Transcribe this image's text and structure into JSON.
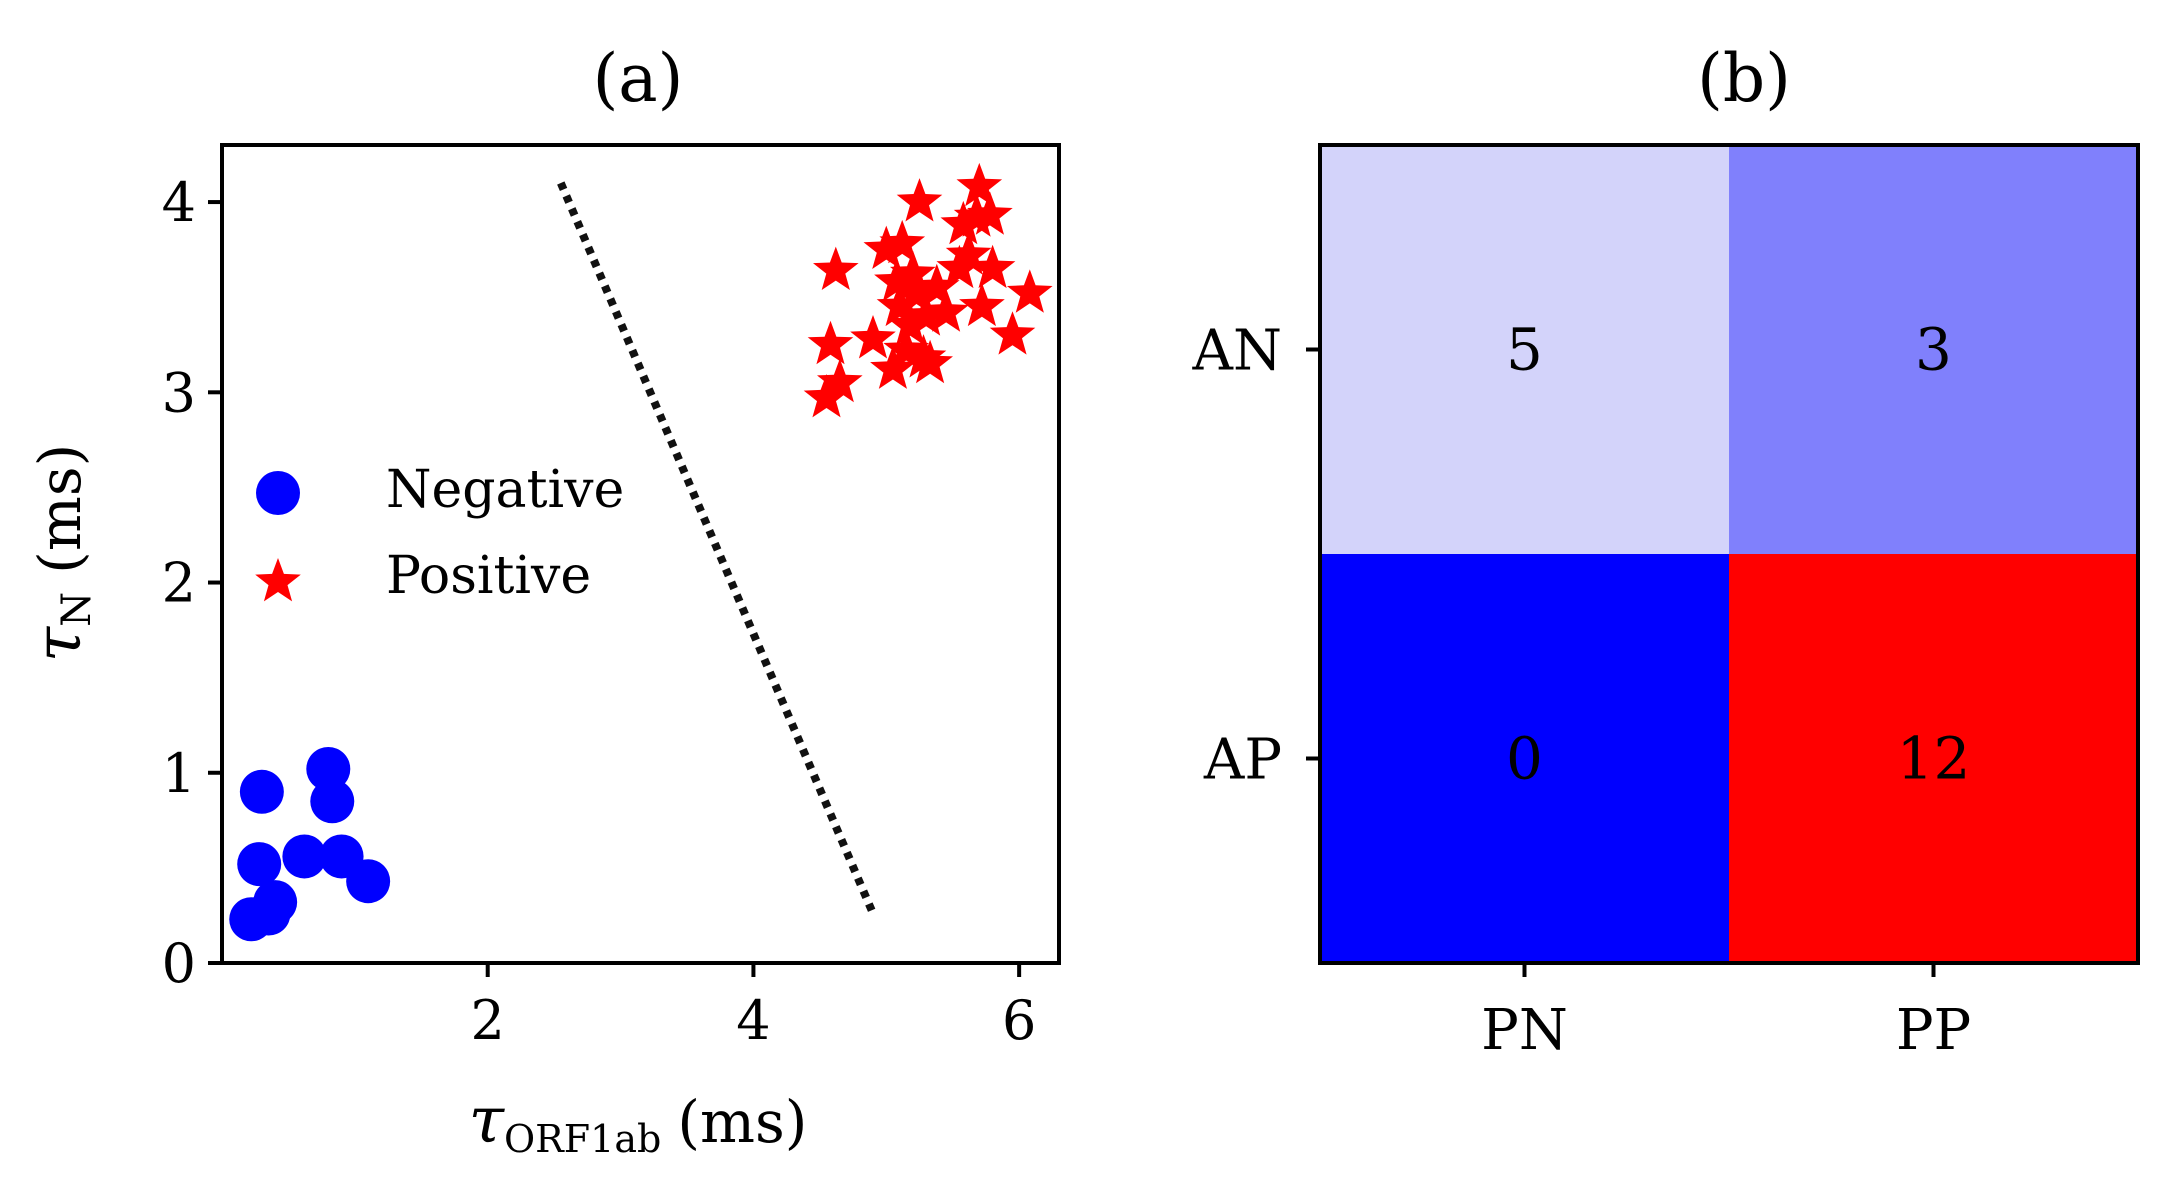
{
  "chart_data": [
    {
      "panel_label": "(a)",
      "type": "scatter",
      "xlabel_main": "τ",
      "xlabel_sub": "ORF1ab",
      "xlabel_unit": "(ms)",
      "ylabel_main": "τ",
      "ylabel_sub": "N",
      "ylabel_unit": "(ms)",
      "xlim": [
        0.0,
        6.3
      ],
      "ylim": [
        0.0,
        4.3
      ],
      "xticks": [
        2,
        4,
        6
      ],
      "yticks": [
        0,
        1,
        2,
        3,
        4
      ],
      "grid": false,
      "legend_placement": "center-left",
      "series": [
        {
          "name": "Negative",
          "marker": "circle",
          "color": "#0000ff",
          "points": [
            [
              0.22,
              0.23
            ],
            [
              0.28,
              0.52
            ],
            [
              0.3,
              0.9
            ],
            [
              0.35,
              0.26
            ],
            [
              0.4,
              0.32
            ],
            [
              0.62,
              0.56
            ],
            [
              0.8,
              1.02
            ],
            [
              0.83,
              0.85
            ],
            [
              0.9,
              0.56
            ],
            [
              1.1,
              0.43
            ]
          ]
        },
        {
          "name": "Positive",
          "marker": "star",
          "color": "#ff0000",
          "points": [
            [
              4.55,
              2.97
            ],
            [
              4.58,
              3.25
            ],
            [
              4.62,
              3.64
            ],
            [
              4.65,
              3.05
            ],
            [
              4.9,
              3.28
            ],
            [
              5.0,
              3.75
            ],
            [
              5.05,
              3.12
            ],
            [
              5.08,
              3.58
            ],
            [
              5.1,
              3.45
            ],
            [
              5.12,
              3.78
            ],
            [
              5.15,
              3.22
            ],
            [
              5.18,
              3.35
            ],
            [
              5.2,
              3.62
            ],
            [
              5.22,
              3.52
            ],
            [
              5.25,
              4.0
            ],
            [
              5.28,
              3.18
            ],
            [
              5.3,
              3.4
            ],
            [
              5.33,
              3.15
            ],
            [
              5.38,
              3.55
            ],
            [
              5.45,
              3.42
            ],
            [
              5.55,
              3.65
            ],
            [
              5.58,
              3.88
            ],
            [
              5.62,
              3.72
            ],
            [
              5.68,
              3.92
            ],
            [
              5.7,
              4.08
            ],
            [
              5.72,
              3.45
            ],
            [
              5.78,
              3.93
            ],
            [
              5.8,
              3.65
            ],
            [
              5.95,
              3.3
            ],
            [
              6.08,
              3.52
            ]
          ]
        }
      ],
      "decision_boundary": {
        "style": "dotted",
        "color": "#111111",
        "points": [
          [
            2.55,
            4.1
          ],
          [
            4.9,
            0.26
          ]
        ]
      }
    },
    {
      "panel_label": "(b)",
      "type": "heatmap",
      "x_categories": [
        "PN",
        "PP"
      ],
      "y_categories": [
        "AN",
        "AP"
      ],
      "values": [
        [
          5,
          3
        ],
        [
          0,
          12
        ]
      ],
      "cell_colors": [
        [
          "#d3d3fa",
          "#8080fc"
        ],
        [
          "#0000ff",
          "#ff0000"
        ]
      ],
      "colormap": "bwr"
    }
  ]
}
